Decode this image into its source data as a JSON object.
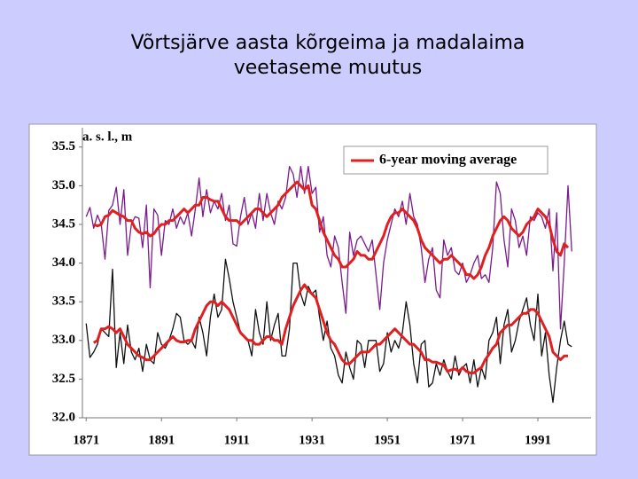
{
  "chart_data": {
    "type": "line",
    "title": [
      "Võrtsjärve aasta kõrgeima ja madalaima",
      "veetaseme muutus"
    ],
    "y_label": "a. s. l., m",
    "x": [
      1871,
      1872,
      1873,
      1874,
      1875,
      1876,
      1877,
      1878,
      1879,
      1880,
      1881,
      1882,
      1883,
      1884,
      1885,
      1886,
      1887,
      1888,
      1889,
      1890,
      1891,
      1892,
      1893,
      1894,
      1895,
      1896,
      1897,
      1898,
      1899,
      1900,
      1901,
      1902,
      1903,
      1904,
      1905,
      1906,
      1907,
      1908,
      1909,
      1910,
      1911,
      1912,
      1913,
      1914,
      1915,
      1916,
      1917,
      1918,
      1919,
      1920,
      1921,
      1922,
      1923,
      1924,
      1925,
      1926,
      1927,
      1928,
      1929,
      1930,
      1931,
      1932,
      1933,
      1934,
      1935,
      1936,
      1937,
      1938,
      1939,
      1940,
      1941,
      1942,
      1943,
      1944,
      1945,
      1946,
      1947,
      1948,
      1949,
      1950,
      1951,
      1952,
      1953,
      1954,
      1955,
      1956,
      1957,
      1958,
      1959,
      1960,
      1961,
      1962,
      1963,
      1964,
      1965,
      1966,
      1967,
      1968,
      1969,
      1970,
      1971,
      1972,
      1973,
      1974,
      1975,
      1976,
      1977,
      1978,
      1979,
      1980,
      1981,
      1982,
      1983,
      1984,
      1985,
      1986,
      1987,
      1988,
      1989,
      1990,
      1991,
      1992,
      1993,
      1994,
      1995,
      1996,
      1997,
      1998,
      1999,
      2000
    ],
    "series": [
      {
        "color": "#7a1a8c",
        "width": 1.3,
        "values": [
          34.6,
          34.72,
          34.45,
          34.62,
          34.5,
          34.05,
          34.68,
          34.75,
          34.98,
          34.5,
          34.95,
          34.1,
          34.5,
          34.6,
          34.58,
          34.2,
          34.75,
          33.68,
          34.7,
          34.62,
          34.1,
          34.55,
          34.5,
          34.7,
          34.45,
          34.6,
          34.5,
          34.65,
          34.35,
          34.7,
          35.1,
          34.6,
          34.95,
          34.65,
          34.8,
          34.7,
          34.9,
          34.55,
          34.75,
          34.25,
          34.22,
          34.6,
          34.85,
          34.5,
          34.65,
          34.45,
          34.9,
          34.55,
          34.9,
          34.65,
          34.5,
          34.8,
          34.7,
          34.85,
          35.25,
          35.15,
          34.85,
          35.25,
          34.9,
          35.25,
          34.9,
          34.98,
          34.4,
          34.6,
          34.1,
          33.95,
          34.35,
          34.2,
          33.75,
          33.35,
          34.4,
          34.1,
          34.3,
          34.35,
          34.25,
          34.15,
          34.3,
          33.85,
          33.4,
          34.0,
          34.3,
          34.5,
          34.7,
          34.6,
          34.8,
          34.5,
          34.9,
          34.6,
          34.5,
          34.2,
          33.75,
          34.05,
          34.2,
          33.65,
          33.55,
          34.3,
          34.1,
          34.2,
          33.9,
          33.85,
          34.0,
          33.75,
          33.85,
          34.0,
          34.1,
          33.8,
          33.85,
          33.75,
          34.2,
          35.05,
          34.9,
          34.3,
          33.95,
          34.7,
          34.55,
          34.2,
          34.35,
          34.1,
          34.6,
          34.55,
          34.65,
          34.6,
          34.45,
          34.7,
          33.9,
          34.65,
          33.15,
          34.0,
          35.0,
          34.15
        ]
      },
      {
        "color": "#111111",
        "width": 1.3,
        "values": [
          33.22,
          32.78,
          32.85,
          32.95,
          33.15,
          33.1,
          33.05,
          33.92,
          32.65,
          33.1,
          32.7,
          33.2,
          32.85,
          32.75,
          32.9,
          32.6,
          32.95,
          32.75,
          32.7,
          33.1,
          32.95,
          32.9,
          33.0,
          33.15,
          33.35,
          33.3,
          33.0,
          32.95,
          33.0,
          32.9,
          33.3,
          33.1,
          32.8,
          33.3,
          33.6,
          33.3,
          33.4,
          34.05,
          33.8,
          33.5,
          33.3,
          33.1,
          33.05,
          33.0,
          32.8,
          33.4,
          33.1,
          32.95,
          33.5,
          33.0,
          33.2,
          33.35,
          32.8,
          32.8,
          33.15,
          34.0,
          34.0,
          33.6,
          33.45,
          33.7,
          33.6,
          33.65,
          33.3,
          33.0,
          33.25,
          32.9,
          32.8,
          32.55,
          32.45,
          32.85,
          32.65,
          32.5,
          33.0,
          32.95,
          32.65,
          33.0,
          33.0,
          33.0,
          32.6,
          32.7,
          33.1,
          32.85,
          33.0,
          32.9,
          33.1,
          33.5,
          33.2,
          32.7,
          32.45,
          32.95,
          33.0,
          32.4,
          32.45,
          32.7,
          32.55,
          32.75,
          32.6,
          32.5,
          32.8,
          32.55,
          32.65,
          32.7,
          32.45,
          32.75,
          32.4,
          32.65,
          32.5,
          33.0,
          33.1,
          33.3,
          32.7,
          33.2,
          33.4,
          32.85,
          33.0,
          33.25,
          33.4,
          33.55,
          33.2,
          33.0,
          33.6,
          32.8,
          33.1,
          32.55,
          32.2,
          32.65,
          33.0,
          33.25,
          32.95,
          32.92
        ]
      },
      {
        "name": "6-year moving average",
        "color": "#e02020",
        "width": 3,
        "values": [
          null,
          null,
          34.5,
          34.48,
          34.5,
          34.6,
          34.62,
          34.68,
          34.65,
          34.62,
          34.6,
          34.55,
          34.55,
          34.45,
          34.4,
          34.38,
          34.4,
          34.35,
          34.38,
          34.45,
          34.5,
          34.5,
          34.55,
          34.55,
          34.6,
          34.65,
          34.7,
          34.65,
          34.7,
          34.75,
          34.75,
          34.85,
          34.85,
          34.82,
          34.8,
          34.8,
          34.7,
          34.6,
          34.55,
          34.55,
          34.55,
          34.5,
          34.55,
          34.6,
          34.65,
          34.7,
          34.7,
          34.65,
          34.6,
          34.65,
          34.7,
          34.75,
          34.85,
          34.9,
          34.95,
          35.0,
          35.05,
          35.0,
          34.95,
          35.0,
          34.75,
          34.7,
          34.55,
          34.4,
          34.3,
          34.2,
          34.1,
          34.05,
          33.95,
          33.95,
          34.0,
          34.05,
          34.15,
          34.1,
          34.1,
          34.05,
          34.05,
          34.15,
          34.25,
          34.35,
          34.5,
          34.6,
          34.65,
          34.65,
          34.7,
          34.65,
          34.6,
          34.55,
          34.45,
          34.3,
          34.2,
          34.15,
          34.1,
          34.05,
          34.0,
          34.05,
          34.05,
          34.1,
          34.05,
          34.0,
          33.95,
          33.85,
          33.85,
          33.8,
          33.85,
          33.95,
          34.1,
          34.2,
          34.35,
          34.45,
          34.55,
          34.6,
          34.55,
          34.45,
          34.4,
          34.35,
          34.4,
          34.5,
          34.55,
          34.6,
          34.7,
          34.65,
          34.6,
          34.5,
          34.3,
          34.15,
          34.1,
          34.25,
          34.2,
          null
        ]
      },
      {
        "color": "#e02020",
        "width": 3,
        "values": [
          null,
          null,
          32.97,
          33.0,
          33.15,
          33.15,
          33.18,
          33.15,
          33.1,
          33.15,
          33.05,
          32.95,
          32.9,
          32.85,
          32.8,
          32.78,
          32.75,
          32.75,
          32.8,
          32.85,
          32.9,
          32.95,
          33.0,
          33.05,
          33.0,
          32.98,
          32.98,
          33.0,
          33.0,
          33.15,
          33.25,
          33.35,
          33.45,
          33.5,
          33.5,
          33.45,
          33.5,
          33.45,
          33.4,
          33.3,
          33.2,
          33.1,
          33.05,
          33.0,
          33.0,
          32.95,
          32.95,
          33.0,
          33.05,
          33.05,
          33.0,
          33.0,
          32.95,
          33.15,
          33.3,
          33.45,
          33.55,
          33.65,
          33.72,
          33.65,
          33.6,
          33.55,
          33.4,
          33.25,
          33.1,
          33.0,
          32.95,
          32.85,
          32.75,
          32.7,
          32.7,
          32.75,
          32.8,
          32.85,
          32.85,
          32.85,
          32.9,
          32.95,
          32.95,
          33.0,
          33.05,
          33.1,
          33.15,
          33.1,
          33.05,
          33.0,
          32.95,
          32.95,
          32.9,
          32.85,
          32.75,
          32.75,
          32.72,
          32.72,
          32.7,
          32.68,
          32.6,
          32.62,
          32.63,
          32.6,
          32.65,
          32.6,
          32.58,
          32.58,
          32.62,
          32.65,
          32.75,
          32.82,
          32.9,
          32.95,
          33.1,
          33.15,
          33.2,
          33.2,
          33.25,
          33.3,
          33.35,
          33.35,
          33.4,
          33.4,
          33.35,
          33.25,
          33.15,
          33.05,
          32.85,
          32.8,
          32.75,
          32.8,
          32.8,
          null
        ]
      }
    ],
    "xlim": [
      1870,
      2005
    ],
    "xticks": [
      1871,
      1891,
      1911,
      1931,
      1951,
      1971,
      1991
    ],
    "ylim": [
      32,
      35.75
    ],
    "yticks": [
      {
        "value": 32,
        "label": "32.0"
      },
      32.5,
      {
        "value": 33,
        "label": "33.0"
      },
      33.5,
      {
        "value": 34,
        "label": "34.0"
      },
      34.5,
      {
        "value": 35,
        "label": "35.0"
      },
      35.5
    ],
    "grid": false,
    "legend": "top-right"
  }
}
